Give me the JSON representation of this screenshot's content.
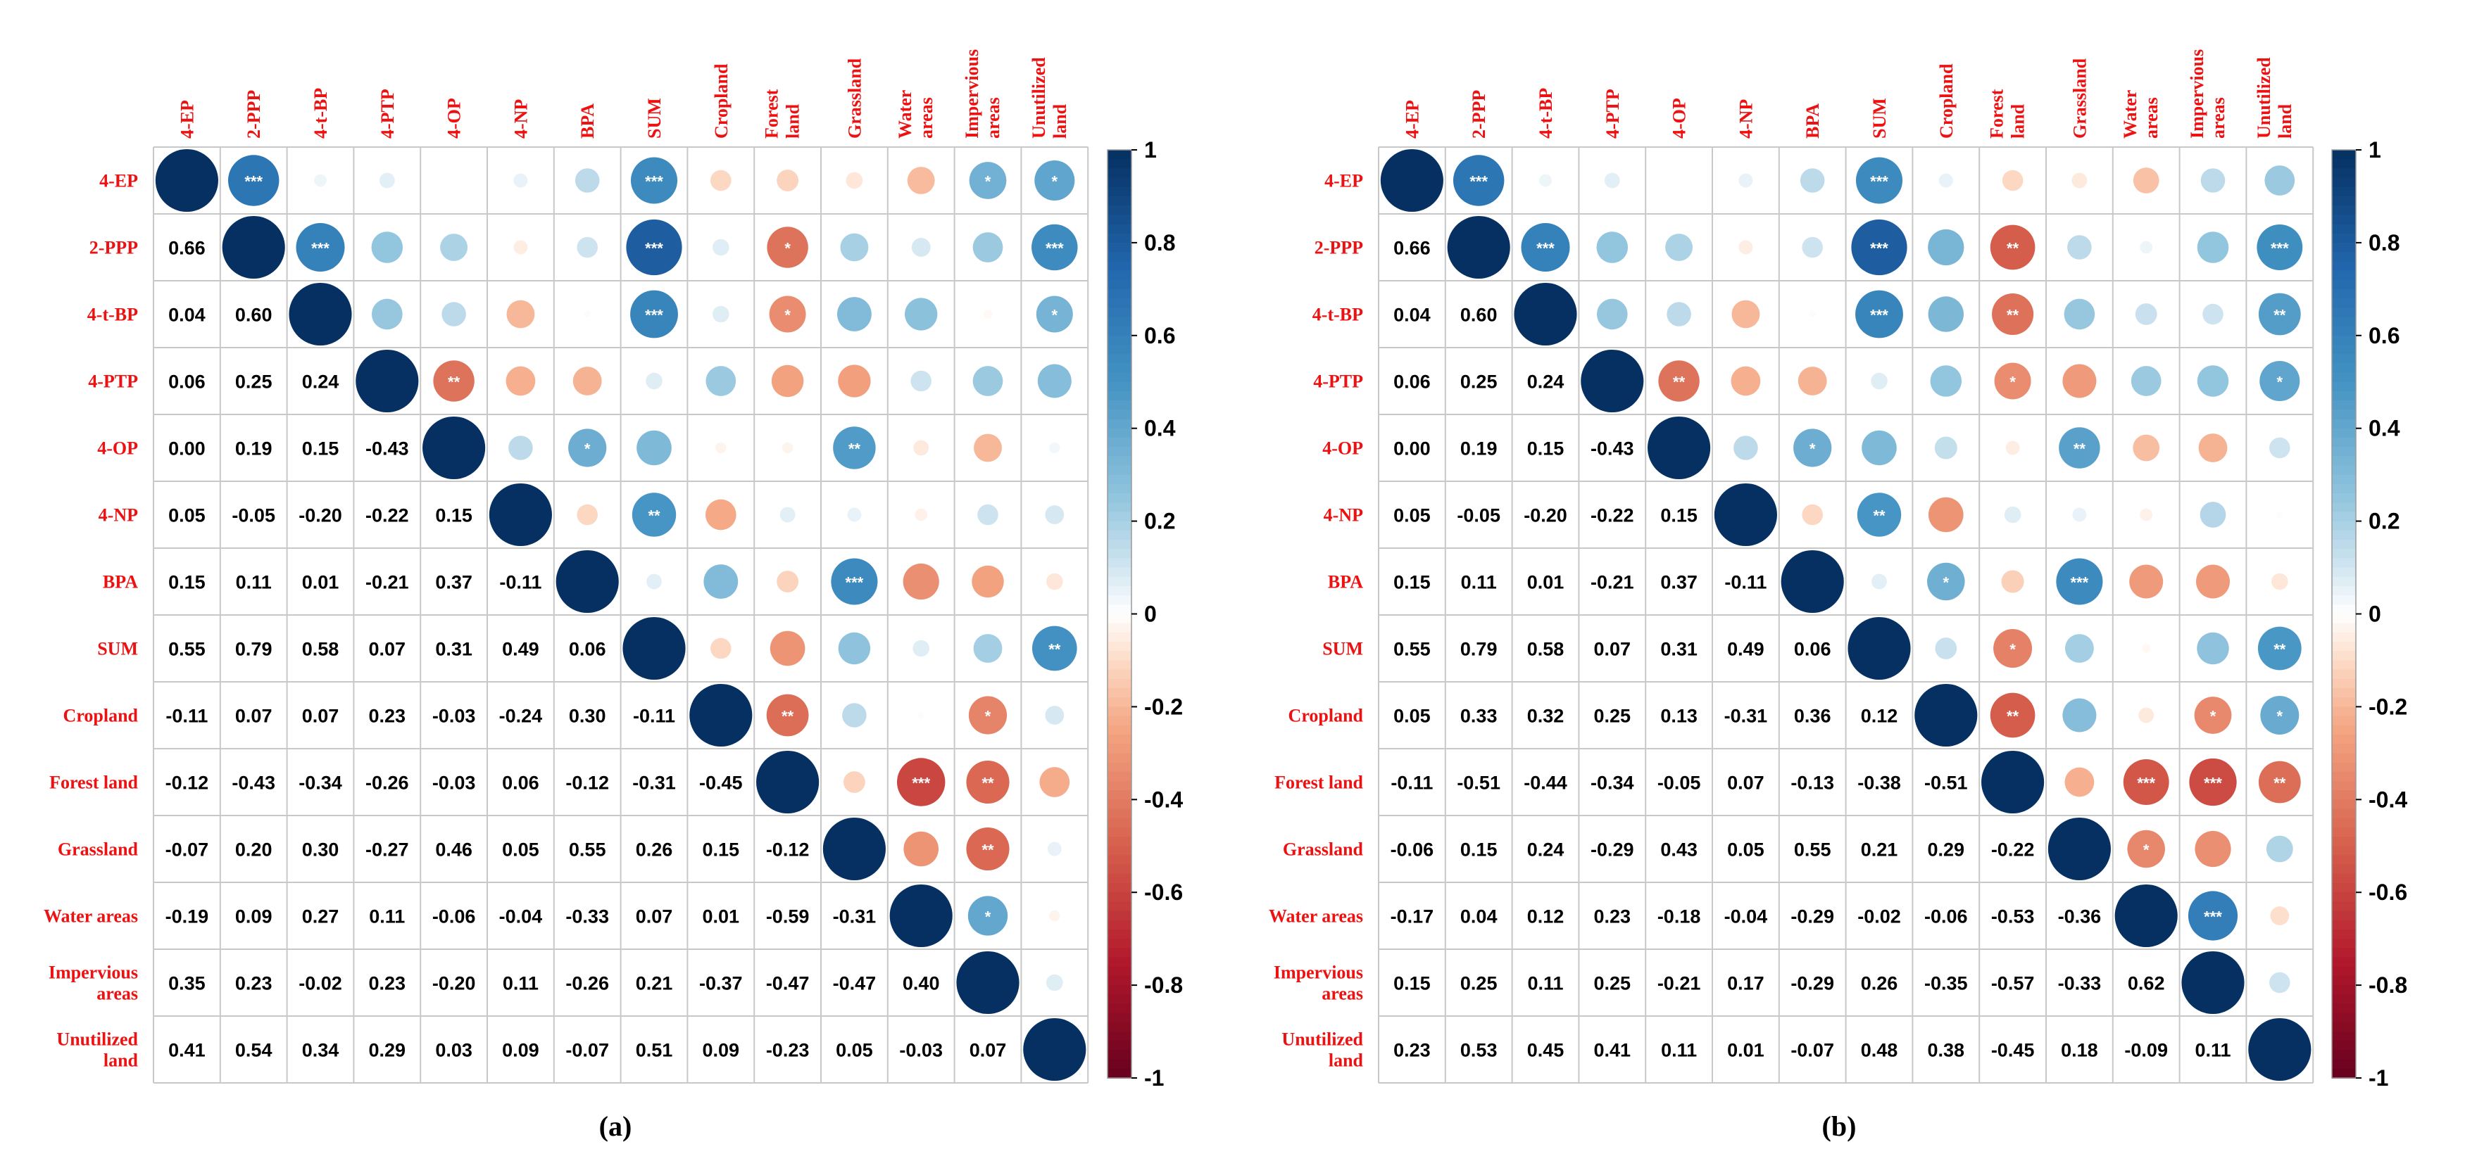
{
  "variables": [
    "4-EP",
    "2-PPP",
    "4-t-BP",
    "4-PTP",
    "4-OP",
    "4-NP",
    "BPA",
    "SUM",
    "Cropland",
    "Forest land",
    "Grassland",
    "Water areas",
    "Impervious areas",
    "Unutilized land"
  ],
  "colorbar_ticks": [
    "1",
    "0.8",
    "0.6",
    "0.4",
    "0.2",
    "0",
    "-0.2",
    "-0.4",
    "-0.6",
    "-0.8",
    "-1"
  ],
  "colors": {
    "negative_end": "#67001f",
    "positive_end": "#053061",
    "label": "#ee1111",
    "grid": "#c8c8c8"
  },
  "chart_data": [
    {
      "type": "heatmap",
      "title": "(a)",
      "labels": [
        "4-EP",
        "2-PPP",
        "4-t-BP",
        "4-PTP",
        "4-OP",
        "4-NP",
        "BPA",
        "SUM",
        "Cropland",
        "Forest land",
        "Grassland",
        "Water areas",
        "Impervious areas",
        "Unutilized land"
      ],
      "lower_values": [
        [],
        [
          0.66
        ],
        [
          0.04,
          0.6
        ],
        [
          0.06,
          0.25,
          0.24
        ],
        [
          0.0,
          0.19,
          0.15,
          -0.43
        ],
        [
          0.05,
          -0.05,
          -0.2,
          -0.22,
          0.15
        ],
        [
          0.15,
          0.11,
          0.01,
          -0.21,
          0.37,
          -0.11
        ],
        [
          0.55,
          0.79,
          0.58,
          0.07,
          0.31,
          0.49,
          0.06
        ],
        [
          -0.11,
          0.07,
          0.07,
          0.23,
          -0.03,
          -0.24,
          0.3,
          -0.11
        ],
        [
          -0.12,
          -0.43,
          -0.34,
          -0.26,
          -0.03,
          0.06,
          -0.12,
          -0.31,
          -0.45
        ],
        [
          -0.07,
          0.2,
          0.3,
          -0.27,
          0.46,
          0.05,
          0.55,
          0.26,
          0.15,
          -0.12
        ],
        [
          -0.19,
          0.09,
          0.27,
          0.11,
          -0.06,
          -0.04,
          -0.33,
          0.07,
          0.01,
          -0.59,
          -0.31
        ],
        [
          0.35,
          0.23,
          -0.02,
          0.23,
          -0.2,
          0.11,
          -0.26,
          0.21,
          -0.37,
          -0.47,
          -0.47,
          0.4
        ],
        [
          0.41,
          0.54,
          0.34,
          0.29,
          0.03,
          0.09,
          -0.07,
          0.51,
          0.09,
          -0.23,
          0.05,
          -0.03,
          0.07
        ]
      ],
      "significance": {
        "0-1": "***",
        "0-7": "***",
        "0-12": "*",
        "0-13": "*",
        "1-2": "***",
        "1-7": "***",
        "1-9": "*",
        "1-13": "***",
        "2-7": "***",
        "2-9": "*",
        "2-13": "*",
        "3-4": "**",
        "4-6": "*",
        "4-10": "**",
        "5-7": "**",
        "6-10": "***",
        "7-13": "**",
        "8-9": "**",
        "8-12": "*",
        "9-11": "***",
        "9-12": "**",
        "10-12": "**",
        "11-12": "*"
      },
      "colorbar_range": [
        -1,
        1
      ]
    },
    {
      "type": "heatmap",
      "title": "(b)",
      "labels": [
        "4-EP",
        "2-PPP",
        "4-t-BP",
        "4-PTP",
        "4-OP",
        "4-NP",
        "BPA",
        "SUM",
        "Cropland",
        "Forest land",
        "Grassland",
        "Water areas",
        "Impervious areas",
        "Unutilized land"
      ],
      "lower_values": [
        [],
        [
          0.66
        ],
        [
          0.04,
          0.6
        ],
        [
          0.06,
          0.25,
          0.24
        ],
        [
          0.0,
          0.19,
          0.15,
          -0.43
        ],
        [
          0.05,
          -0.05,
          -0.2,
          -0.22,
          0.15
        ],
        [
          0.15,
          0.11,
          0.01,
          -0.21,
          0.37,
          -0.11
        ],
        [
          0.55,
          0.79,
          0.58,
          0.07,
          0.31,
          0.49,
          0.06
        ],
        [
          0.05,
          0.33,
          0.32,
          0.25,
          0.13,
          -0.31,
          0.36,
          0.12
        ],
        [
          -0.11,
          -0.51,
          -0.44,
          -0.34,
          -0.05,
          0.07,
          -0.13,
          -0.38,
          -0.51
        ],
        [
          -0.06,
          0.15,
          0.24,
          -0.29,
          0.43,
          0.05,
          0.55,
          0.21,
          0.29,
          -0.22
        ],
        [
          -0.17,
          0.04,
          0.12,
          0.23,
          -0.18,
          -0.04,
          -0.29,
          -0.02,
          -0.06,
          -0.53,
          -0.36
        ],
        [
          0.15,
          0.25,
          0.11,
          0.25,
          -0.21,
          0.17,
          -0.29,
          0.26,
          -0.35,
          -0.57,
          -0.33,
          0.62
        ],
        [
          0.23,
          0.53,
          0.45,
          0.41,
          0.11,
          0.01,
          -0.07,
          0.48,
          0.38,
          -0.45,
          0.18,
          -0.09,
          0.11
        ]
      ],
      "significance": {
        "0-1": "***",
        "0-7": "***",
        "1-2": "***",
        "1-7": "***",
        "1-9": "**",
        "1-13": "***",
        "2-7": "***",
        "2-9": "**",
        "2-13": "**",
        "3-4": "**",
        "3-9": "*",
        "3-13": "*",
        "4-6": "*",
        "4-10": "**",
        "5-7": "**",
        "6-8": "*",
        "6-10": "***",
        "7-9": "*",
        "7-13": "**",
        "8-9": "**",
        "8-12": "*",
        "8-13": "*",
        "9-11": "***",
        "9-12": "***",
        "9-13": "**",
        "10-11": "*",
        "11-12": "***"
      },
      "colorbar_range": [
        -1,
        1
      ]
    }
  ]
}
